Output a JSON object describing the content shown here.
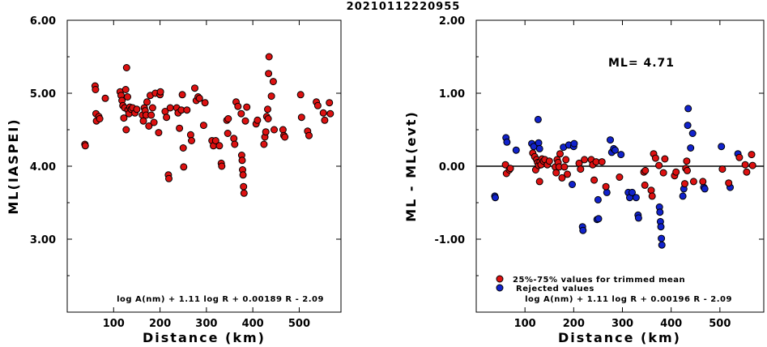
{
  "title": "20210112220955",
  "colors": {
    "red": "#dd1111",
    "blue": "#1122cc"
  },
  "chart_data": [
    {
      "type": "scatter",
      "ylabel": "ML(IASPEI)",
      "xlabel": "Distance (km)",
      "xlim": [
        0,
        590
      ],
      "ylim": [
        2.0,
        6.0
      ],
      "xticks": [
        "100",
        "200",
        "300",
        "400",
        "500"
      ],
      "yticks": [
        "3.00",
        "4.00",
        "5.00",
        "6.00"
      ],
      "formula": "log A(nm) + 1.11 log R + 0.00189 R - 2.09",
      "points": [
        [
          38,
          4.3
        ],
        [
          39,
          4.28
        ],
        [
          60,
          5.1
        ],
        [
          61,
          5.05
        ],
        [
          62,
          4.72
        ],
        [
          63,
          4.62
        ],
        [
          68,
          4.68
        ],
        [
          70,
          4.65
        ],
        [
          82,
          4.93
        ],
        [
          114,
          5.02
        ],
        [
          116,
          4.97
        ],
        [
          118,
          4.9
        ],
        [
          120,
          4.83
        ],
        [
          122,
          4.66
        ],
        [
          124,
          4.8
        ],
        [
          126,
          5.05
        ],
        [
          127,
          4.5
        ],
        [
          128,
          5.35
        ],
        [
          130,
          4.95
        ],
        [
          131,
          4.77
        ],
        [
          133,
          4.72
        ],
        [
          135,
          4.81
        ],
        [
          138,
          4.78
        ],
        [
          141,
          4.8
        ],
        [
          146,
          4.73
        ],
        [
          150,
          4.78
        ],
        [
          162,
          4.7
        ],
        [
          164,
          4.62
        ],
        [
          166,
          4.8
        ],
        [
          168,
          4.76
        ],
        [
          170,
          4.7
        ],
        [
          172,
          4.88
        ],
        [
          176,
          4.55
        ],
        [
          179,
          4.97
        ],
        [
          181,
          4.7
        ],
        [
          184,
          4.8
        ],
        [
          187,
          4.6
        ],
        [
          190,
          5.0
        ],
        [
          197,
          4.46
        ],
        [
          200,
          4.98
        ],
        [
          201,
          5.02
        ],
        [
          211,
          4.75
        ],
        [
          214,
          4.67
        ],
        [
          218,
          3.88
        ],
        [
          219,
          3.83
        ],
        [
          222,
          4.8
        ],
        [
          236,
          4.8
        ],
        [
          239,
          4.73
        ],
        [
          242,
          4.52
        ],
        [
          246,
          4.77
        ],
        [
          248,
          4.98
        ],
        [
          250,
          4.25
        ],
        [
          251,
          3.99
        ],
        [
          258,
          4.77
        ],
        [
          266,
          4.43
        ],
        [
          268,
          4.35
        ],
        [
          275,
          5.07
        ],
        [
          278,
          4.9
        ],
        [
          282,
          4.95
        ],
        [
          285,
          4.93
        ],
        [
          294,
          4.56
        ],
        [
          297,
          4.87
        ],
        [
          312,
          4.35
        ],
        [
          315,
          4.28
        ],
        [
          320,
          4.35
        ],
        [
          328,
          4.28
        ],
        [
          332,
          4.04
        ],
        [
          333,
          4.0
        ],
        [
          344,
          4.63
        ],
        [
          346,
          4.45
        ],
        [
          347,
          4.65
        ],
        [
          359,
          4.38
        ],
        [
          361,
          4.3
        ],
        [
          364,
          4.88
        ],
        [
          368,
          4.82
        ],
        [
          375,
          4.72
        ],
        [
          376,
          4.15
        ],
        [
          377,
          4.08
        ],
        [
          378,
          3.95
        ],
        [
          379,
          3.88
        ],
        [
          380,
          3.72
        ],
        [
          381,
          3.63
        ],
        [
          384,
          4.62
        ],
        [
          387,
          4.81
        ],
        [
          407,
          4.58
        ],
        [
          410,
          4.63
        ],
        [
          424,
          4.3
        ],
        [
          426,
          4.4
        ],
        [
          428,
          4.47
        ],
        [
          430,
          4.68
        ],
        [
          432,
          4.78
        ],
        [
          433,
          4.65
        ],
        [
          434,
          5.27
        ],
        [
          435,
          5.5
        ],
        [
          440,
          4.96
        ],
        [
          444,
          5.16
        ],
        [
          446,
          4.5
        ],
        [
          465,
          4.5
        ],
        [
          467,
          4.42
        ],
        [
          469,
          4.4
        ],
        [
          503,
          4.98
        ],
        [
          505,
          4.67
        ],
        [
          518,
          4.48
        ],
        [
          521,
          4.42
        ],
        [
          537,
          4.88
        ],
        [
          540,
          4.83
        ],
        [
          552,
          4.73
        ],
        [
          555,
          4.63
        ],
        [
          565,
          4.87
        ],
        [
          567,
          4.72
        ]
      ]
    },
    {
      "type": "scatter",
      "ylabel": "ML - ML(evt)",
      "xlabel": "Distance (km)",
      "xlim": [
        0,
        590
      ],
      "ylim": [
        -2.0,
        2.0
      ],
      "xticks": [
        "100",
        "200",
        "300",
        "400",
        "500"
      ],
      "yticks": [
        "-1.00",
        "0.00",
        "1.00",
        "2.00"
      ],
      "ml_label": "ML= 4.71",
      "formula": "log A(nm) + 1.11 log R + 0.00196 R - 2.09",
      "legend": [
        "25%-75% values for trimmed mean",
        "Rejected values"
      ],
      "trimmed_points": [
        [
          60,
          0.02
        ],
        [
          62,
          -0.1
        ],
        [
          68,
          -0.05
        ],
        [
          70,
          -0.03
        ],
        [
          116,
          0.18
        ],
        [
          120,
          0.13
        ],
        [
          122,
          -0.05
        ],
        [
          124,
          0.09
        ],
        [
          126,
          0.05
        ],
        [
          128,
          0.01
        ],
        [
          130,
          -0.21
        ],
        [
          131,
          0.06
        ],
        [
          133,
          0.02
        ],
        [
          135,
          0.1
        ],
        [
          138,
          0.07
        ],
        [
          141,
          0.09
        ],
        [
          146,
          0.02
        ],
        [
          150,
          0.07
        ],
        [
          162,
          -0.01
        ],
        [
          164,
          -0.09
        ],
        [
          166,
          0.09
        ],
        [
          168,
          0.05
        ],
        [
          170,
          -0.01
        ],
        [
          172,
          0.17
        ],
        [
          176,
          -0.16
        ],
        [
          181,
          -0.01
        ],
        [
          184,
          0.09
        ],
        [
          187,
          -0.11
        ],
        [
          211,
          0.04
        ],
        [
          214,
          -0.04
        ],
        [
          222,
          0.09
        ],
        [
          236,
          0.09
        ],
        [
          239,
          0.02
        ],
        [
          242,
          -0.19
        ],
        [
          246,
          0.06
        ],
        [
          258,
          0.06
        ],
        [
          266,
          -0.28
        ],
        [
          294,
          -0.15
        ],
        [
          344,
          -0.08
        ],
        [
          346,
          -0.26
        ],
        [
          347,
          -0.06
        ],
        [
          359,
          -0.33
        ],
        [
          361,
          -0.41
        ],
        [
          364,
          0.17
        ],
        [
          368,
          0.11
        ],
        [
          375,
          0.01
        ],
        [
          384,
          -0.09
        ],
        [
          387,
          0.1
        ],
        [
          407,
          -0.13
        ],
        [
          410,
          -0.08
        ],
        [
          428,
          -0.24
        ],
        [
          430,
          -0.03
        ],
        [
          432,
          0.07
        ],
        [
          433,
          -0.06
        ],
        [
          446,
          -0.21
        ],
        [
          465,
          -0.21
        ],
        [
          505,
          -0.04
        ],
        [
          518,
          -0.23
        ],
        [
          540,
          0.12
        ],
        [
          552,
          0.02
        ],
        [
          555,
          -0.08
        ],
        [
          565,
          0.16
        ],
        [
          567,
          0.01
        ]
      ],
      "rejected_points": [
        [
          38,
          -0.41
        ],
        [
          39,
          -0.43
        ],
        [
          61,
          0.39
        ],
        [
          63,
          0.33
        ],
        [
          82,
          0.22
        ],
        [
          114,
          0.31
        ],
        [
          118,
          0.27
        ],
        [
          127,
          0.64
        ],
        [
          128,
          0.32
        ],
        [
          130,
          0.24
        ],
        [
          179,
          0.26
        ],
        [
          190,
          0.29
        ],
        [
          197,
          -0.25
        ],
        [
          200,
          0.27
        ],
        [
          201,
          0.31
        ],
        [
          218,
          -0.83
        ],
        [
          219,
          -0.88
        ],
        [
          248,
          -0.73
        ],
        [
          250,
          -0.46
        ],
        [
          251,
          -0.72
        ],
        [
          268,
          -0.36
        ],
        [
          275,
          0.36
        ],
        [
          278,
          0.19
        ],
        [
          282,
          0.24
        ],
        [
          285,
          0.22
        ],
        [
          297,
          0.16
        ],
        [
          312,
          -0.36
        ],
        [
          315,
          -0.43
        ],
        [
          320,
          -0.36
        ],
        [
          328,
          -0.43
        ],
        [
          332,
          -0.67
        ],
        [
          333,
          -0.71
        ],
        [
          376,
          -0.56
        ],
        [
          377,
          -0.63
        ],
        [
          378,
          -0.76
        ],
        [
          379,
          -0.83
        ],
        [
          380,
          -0.99
        ],
        [
          381,
          -1.08
        ],
        [
          424,
          -0.41
        ],
        [
          426,
          -0.31
        ],
        [
          434,
          0.56
        ],
        [
          435,
          0.79
        ],
        [
          440,
          0.25
        ],
        [
          444,
          0.45
        ],
        [
          467,
          -0.29
        ],
        [
          469,
          -0.31
        ],
        [
          503,
          0.27
        ],
        [
          521,
          -0.29
        ],
        [
          537,
          0.17
        ]
      ]
    }
  ]
}
